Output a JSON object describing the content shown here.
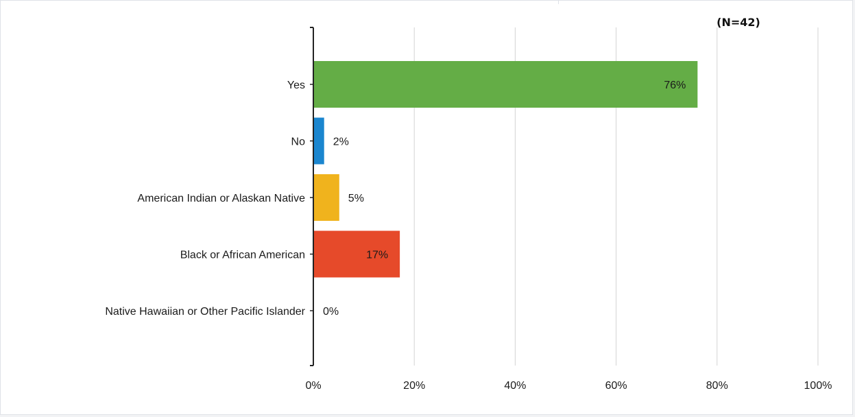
{
  "chart_data": {
    "type": "bar",
    "orientation": "horizontal",
    "sample_size": "(N=42)",
    "categories": [
      "Yes",
      "No",
      "American Indian or Alaskan Native",
      "Black or African American",
      "Native Hawaiian or Other Pacific Islander"
    ],
    "values": [
      76,
      2,
      5,
      17,
      0
    ],
    "value_labels": [
      "76%",
      "2%",
      "5%",
      "17%",
      "0%"
    ],
    "colors": [
      "#64ad46",
      "#1b86cf",
      "#f0b31d",
      "#e64a2a",
      "#9e9e9e"
    ],
    "xlim": [
      0,
      100
    ],
    "xticks": [
      0,
      20,
      40,
      60,
      80,
      100
    ],
    "xtick_labels": [
      "0%",
      "20%",
      "40%",
      "60%",
      "80%",
      "100%"
    ],
    "grid": true,
    "legend": "none",
    "title": "",
    "xlabel": "",
    "ylabel": ""
  }
}
